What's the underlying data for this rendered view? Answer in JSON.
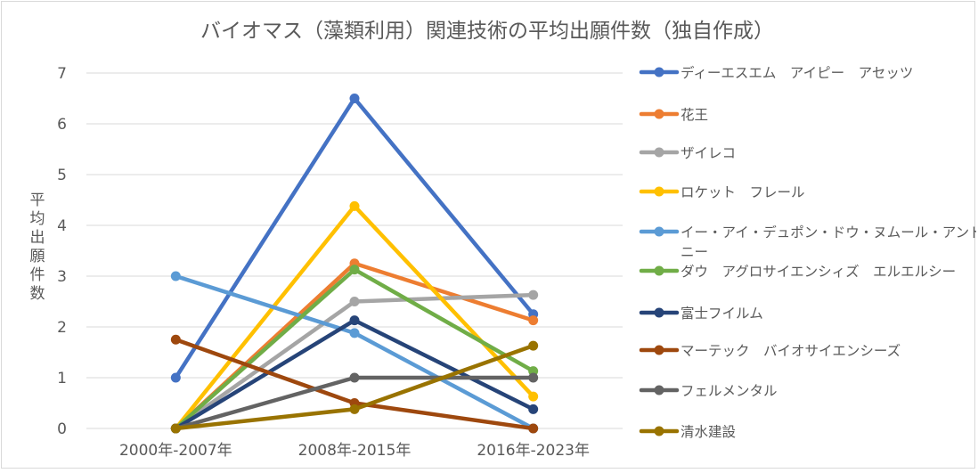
{
  "chart_data": {
    "type": "line",
    "title": "バイオマス（藻類利用）関連技術の平均出願件数（独自作成）",
    "ylabel": "平均出願件数",
    "xlabel": "",
    "categories": [
      "2000年-2007年",
      "2008年-2015年",
      "2016年-2023年"
    ],
    "ylim": [
      0,
      7
    ],
    "yticks": [
      "0",
      "1",
      "2",
      "3",
      "4",
      "5",
      "6",
      "7"
    ],
    "grid": "horizontal",
    "legend_position": "right",
    "series": [
      {
        "name": "ディーエスエム　アイピー　アセッツ",
        "color": "#4472c4",
        "values": [
          1.0,
          6.5,
          2.25
        ]
      },
      {
        "name": "花王",
        "color": "#ed7d31",
        "values": [
          0.0,
          3.25,
          2.13
        ]
      },
      {
        "name": "ザイレコ",
        "color": "#a5a5a5",
        "values": [
          0.0,
          2.5,
          2.63
        ]
      },
      {
        "name": "ロケット　フレール",
        "color": "#ffc000",
        "values": [
          0.0,
          4.38,
          0.63
        ]
      },
      {
        "name": "イー・アイ・デュポン・ドウ・ヌムール・アンド・カンパニー",
        "color": "#5b9bd5",
        "values": [
          3.0,
          1.88,
          0.0
        ]
      },
      {
        "name": "ダウ　アグロサイエンシィズ　エルエルシー",
        "color": "#70ad47",
        "values": [
          0.0,
          3.13,
          1.13
        ]
      },
      {
        "name": "富士フイルム",
        "color": "#264478",
        "values": [
          0.0,
          2.13,
          0.38
        ]
      },
      {
        "name": "マーテック　バイオサイエンシーズ",
        "color": "#9e480e",
        "values": [
          1.75,
          0.5,
          0.0
        ]
      },
      {
        "name": "フェルメンタル",
        "color": "#636363",
        "values": [
          0.0,
          1.0,
          1.0
        ]
      },
      {
        "name": "清水建設",
        "color": "#997300",
        "values": [
          0.0,
          0.38,
          1.63
        ]
      }
    ]
  }
}
